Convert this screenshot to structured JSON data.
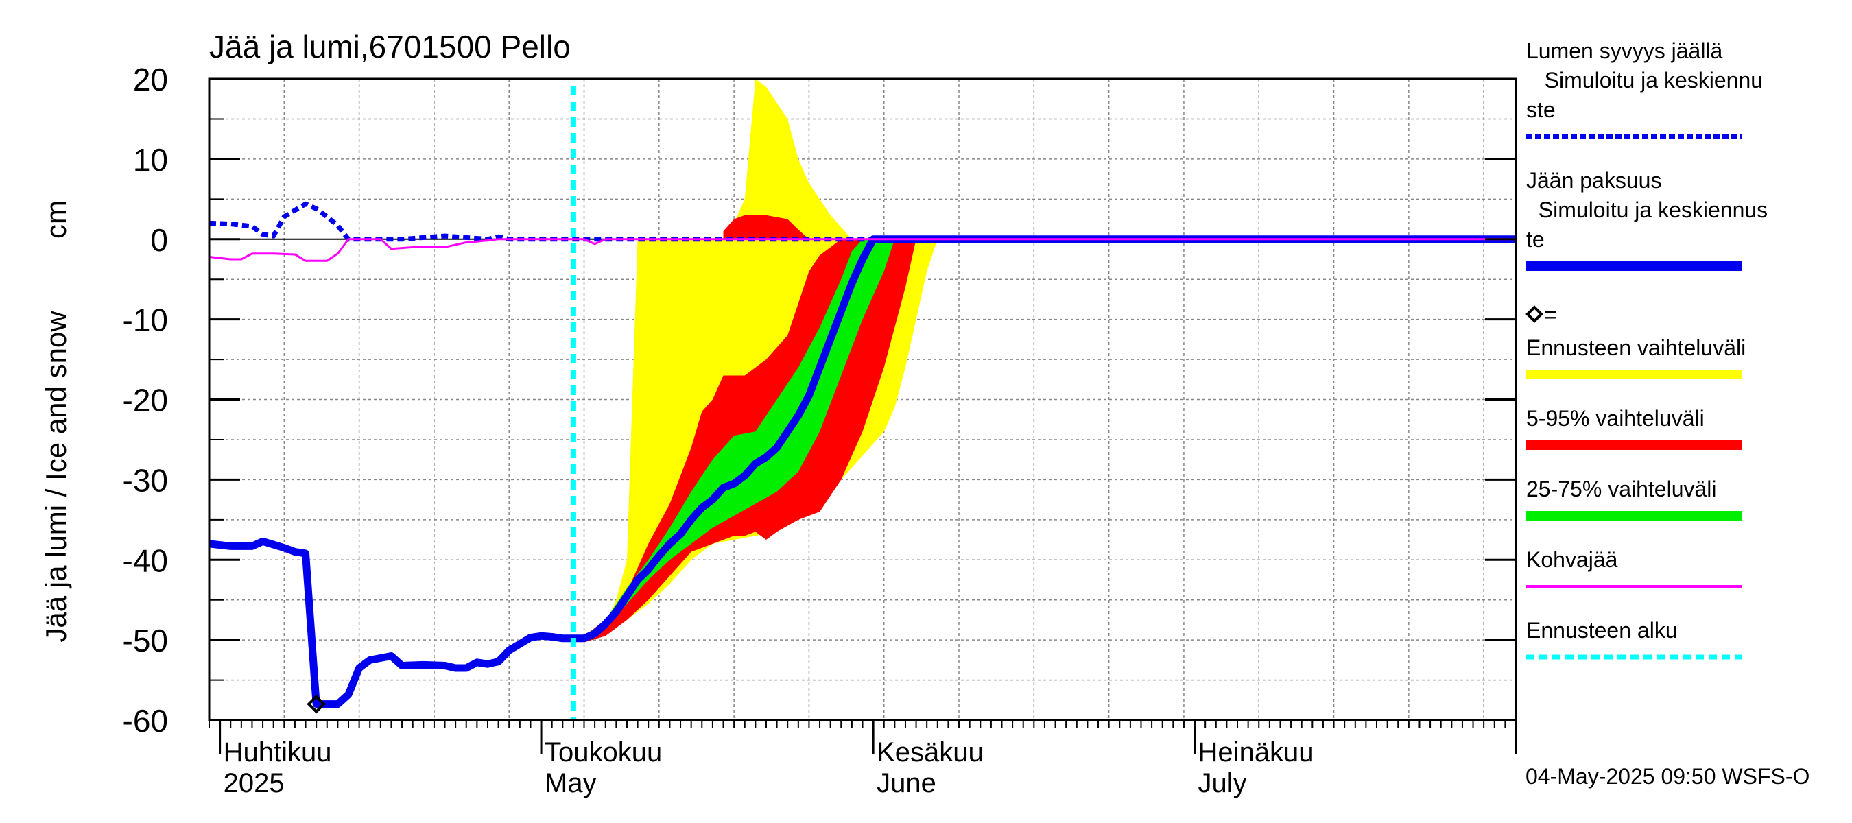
{
  "chart_data": {
    "type": "area",
    "title": "Jää ja lumi,6701500 Pello",
    "ylabel": "Jää ja lumi / Ice and snow",
    "yunit": "cm",
    "ylim": [
      -60,
      20
    ],
    "yticks": [
      20,
      10,
      0,
      -10,
      -20,
      -30,
      -40,
      -50,
      -60
    ],
    "xlim": [
      "2025-03-31",
      "2025-07-31"
    ],
    "grid": true,
    "legend_position": "right",
    "month_labels": [
      {
        "date": "2025-04-01",
        "fi": "Huhtikuu",
        "en": "2025"
      },
      {
        "date": "2025-05-01",
        "fi": "Toukokuu",
        "en": "May"
      },
      {
        "date": "2025-06-01",
        "fi": "Kesäkuu",
        "en": "June"
      },
      {
        "date": "2025-07-01",
        "fi": "Heinäkuu",
        "en": "July"
      }
    ],
    "forecast_start": "2025-05-04",
    "marker": {
      "date": "2025-04-10",
      "value": -58
    },
    "series": [
      {
        "name": "Lumen syvyys jäällä Simuloitu ja keskiennuste",
        "style": "dashed",
        "color": "#0000ee",
        "points": [
          [
            "2025-03-31",
            2.0
          ],
          [
            "2025-04-02",
            1.9
          ],
          [
            "2025-04-04",
            1.6
          ],
          [
            "2025-04-05",
            0.6
          ],
          [
            "2025-04-06",
            0.4
          ],
          [
            "2025-04-07",
            2.8
          ],
          [
            "2025-04-08",
            3.6
          ],
          [
            "2025-04-09",
            4.4
          ],
          [
            "2025-04-10",
            3.8
          ],
          [
            "2025-04-11",
            2.8
          ],
          [
            "2025-04-12",
            1.7
          ],
          [
            "2025-04-13",
            0.0
          ],
          [
            "2025-04-16",
            0.0
          ],
          [
            "2025-04-18",
            0.0
          ],
          [
            "2025-04-20",
            0.2
          ],
          [
            "2025-04-22",
            0.4
          ],
          [
            "2025-04-24",
            0.2
          ],
          [
            "2025-04-26",
            0.0
          ],
          [
            "2025-04-27",
            0.3
          ],
          [
            "2025-04-28",
            0.0
          ],
          [
            "2025-05-31",
            0.0
          ],
          [
            "2025-07-31",
            0.0
          ]
        ]
      },
      {
        "name": "Jään paksuus Simuloitu ja keskiennuste",
        "style": "solid",
        "color": "#0000ee",
        "points": [
          [
            "2025-03-31",
            -38
          ],
          [
            "2025-04-02",
            -38.3
          ],
          [
            "2025-04-04",
            -38.3
          ],
          [
            "2025-04-05",
            -37.7
          ],
          [
            "2025-04-07",
            -38.5
          ],
          [
            "2025-04-08",
            -39
          ],
          [
            "2025-04-09",
            -39.2
          ],
          [
            "2025-04-10",
            -58
          ],
          [
            "2025-04-12",
            -58
          ],
          [
            "2025-04-13",
            -56.8
          ],
          [
            "2025-04-14",
            -53.5
          ],
          [
            "2025-04-15",
            -52.5
          ],
          [
            "2025-04-17",
            -52
          ],
          [
            "2025-04-18",
            -53.2
          ],
          [
            "2025-04-20",
            -53.1
          ],
          [
            "2025-04-22",
            -53.2
          ],
          [
            "2025-04-23",
            -53.5
          ],
          [
            "2025-04-24",
            -53.5
          ],
          [
            "2025-04-25",
            -52.8
          ],
          [
            "2025-04-26",
            -53
          ],
          [
            "2025-04-27",
            -52.7
          ],
          [
            "2025-04-28",
            -51.3
          ],
          [
            "2025-04-29",
            -50.5
          ],
          [
            "2025-04-30",
            -49.7
          ],
          [
            "2025-05-01",
            -49.5
          ],
          [
            "2025-05-02",
            -49.6
          ],
          [
            "2025-05-03",
            -49.8
          ],
          [
            "2025-05-05",
            -49.8
          ],
          [
            "2025-05-06",
            -49.2
          ],
          [
            "2025-05-07",
            -48.0
          ],
          [
            "2025-05-08",
            -46.5
          ],
          [
            "2025-05-09",
            -44.5
          ],
          [
            "2025-05-10",
            -42.5
          ],
          [
            "2025-05-11",
            -41.2
          ],
          [
            "2025-05-12",
            -39.5
          ],
          [
            "2025-05-13",
            -38
          ],
          [
            "2025-05-14",
            -36.8
          ],
          [
            "2025-05-15",
            -35
          ],
          [
            "2025-05-16",
            -33.5
          ],
          [
            "2025-05-17",
            -32.5
          ],
          [
            "2025-05-18",
            -31
          ],
          [
            "2025-05-19",
            -30.5
          ],
          [
            "2025-05-20",
            -29.5
          ],
          [
            "2025-05-21",
            -28
          ],
          [
            "2025-05-22",
            -27.2
          ],
          [
            "2025-05-23",
            -26
          ],
          [
            "2025-05-24",
            -24
          ],
          [
            "2025-05-25",
            -22
          ],
          [
            "2025-05-26",
            -19.5
          ],
          [
            "2025-05-27",
            -16
          ],
          [
            "2025-05-28",
            -12.5
          ],
          [
            "2025-05-29",
            -9
          ],
          [
            "2025-05-30",
            -5.5
          ],
          [
            "2025-05-31",
            -2.5
          ],
          [
            "2025-06-01",
            0
          ],
          [
            "2025-07-31",
            0
          ]
        ]
      },
      {
        "name": "Kohvajää",
        "style": "solid",
        "color": "#ff00ff",
        "points": [
          [
            "2025-03-31",
            -2.2
          ],
          [
            "2025-04-02",
            -2.5
          ],
          [
            "2025-04-03",
            -2.5
          ],
          [
            "2025-04-04",
            -1.8
          ],
          [
            "2025-04-06",
            -1.8
          ],
          [
            "2025-04-08",
            -1.9
          ],
          [
            "2025-04-09",
            -2.7
          ],
          [
            "2025-04-11",
            -2.7
          ],
          [
            "2025-04-12",
            -1.8
          ],
          [
            "2025-04-13",
            0
          ],
          [
            "2025-04-16",
            0
          ],
          [
            "2025-04-17",
            -1.2
          ],
          [
            "2025-04-19",
            -1.0
          ],
          [
            "2025-04-22",
            -1.0
          ],
          [
            "2025-04-24",
            -0.4
          ],
          [
            "2025-04-25",
            -0.3
          ],
          [
            "2025-04-27",
            0
          ],
          [
            "2025-05-05",
            0
          ],
          [
            "2025-05-06",
            -0.6
          ],
          [
            "2025-05-07",
            0
          ],
          [
            "2025-07-31",
            0
          ]
        ]
      }
    ],
    "bands": [
      {
        "name": "Ennusteen vaihteluväli",
        "color": "#ffff00",
        "lower": [
          [
            "2025-05-05",
            -50.3
          ],
          [
            "2025-05-07",
            -49
          ],
          [
            "2025-05-09",
            -47.5
          ],
          [
            "2025-05-11",
            -45.5
          ],
          [
            "2025-05-13",
            -43
          ],
          [
            "2025-05-15",
            -40
          ],
          [
            "2025-05-17",
            -38
          ],
          [
            "2025-05-19",
            -37.5
          ],
          [
            "2025-05-21",
            -37
          ],
          [
            "2025-05-23",
            -36.5
          ],
          [
            "2025-05-25",
            -35
          ],
          [
            "2025-05-27",
            -33
          ],
          [
            "2025-05-29",
            -30
          ],
          [
            "2025-05-31",
            -27
          ],
          [
            "2025-06-02",
            -24
          ],
          [
            "2025-06-03",
            -21
          ],
          [
            "2025-06-04",
            -16
          ],
          [
            "2025-06-05",
            -10
          ],
          [
            "2025-06-06",
            -4
          ],
          [
            "2025-06-07",
            0
          ]
        ],
        "upper": [
          [
            "2025-05-05",
            -49.5
          ],
          [
            "2025-05-07",
            -48
          ],
          [
            "2025-05-08",
            -45
          ],
          [
            "2025-05-09",
            -40
          ],
          [
            "2025-05-10",
            0
          ],
          [
            "2025-05-18",
            0
          ],
          [
            "2025-05-19",
            2
          ],
          [
            "2025-05-20",
            5
          ],
          [
            "2025-05-21",
            20
          ],
          [
            "2025-05-22",
            19
          ],
          [
            "2025-05-23",
            17
          ],
          [
            "2025-05-24",
            15
          ],
          [
            "2025-05-25",
            10
          ],
          [
            "2025-05-26",
            7
          ],
          [
            "2025-05-27",
            5
          ],
          [
            "2025-05-28",
            3
          ],
          [
            "2025-05-29",
            1.5
          ],
          [
            "2025-05-30",
            0
          ]
        ]
      },
      {
        "name": "5-95% vaihteluväli",
        "color": "#ff0000",
        "lower": [
          [
            "2025-05-05",
            -50.3
          ],
          [
            "2025-05-07",
            -49.5
          ],
          [
            "2025-05-09",
            -47.5
          ],
          [
            "2025-05-11",
            -45
          ],
          [
            "2025-05-13",
            -42
          ],
          [
            "2025-05-15",
            -39
          ],
          [
            "2025-05-17",
            -38
          ],
          [
            "2025-05-19",
            -37
          ],
          [
            "2025-05-20",
            -37
          ],
          [
            "2025-05-21",
            -36.5
          ],
          [
            "2025-05-22",
            -37.5
          ],
          [
            "2025-05-23",
            -36.5
          ],
          [
            "2025-05-25",
            -35
          ],
          [
            "2025-05-27",
            -34
          ],
          [
            "2025-05-29",
            -30
          ],
          [
            "2025-05-31",
            -24
          ],
          [
            "2025-06-02",
            -16
          ],
          [
            "2025-06-03",
            -11
          ],
          [
            "2025-06-04",
            -6
          ],
          [
            "2025-06-05",
            0
          ]
        ],
        "upper": [
          [
            "2025-05-05",
            -49.5
          ],
          [
            "2025-05-07",
            -47.5
          ],
          [
            "2025-05-09",
            -44
          ],
          [
            "2025-05-11",
            -38
          ],
          [
            "2025-05-13",
            -33
          ],
          [
            "2025-05-15",
            -26
          ],
          [
            "2025-05-16",
            -21.5
          ],
          [
            "2025-05-17",
            -20
          ],
          [
            "2025-05-18",
            -17
          ],
          [
            "2025-05-20",
            -17
          ],
          [
            "2025-05-22",
            -15
          ],
          [
            "2025-05-24",
            -12
          ],
          [
            "2025-05-25",
            -8
          ],
          [
            "2025-05-26",
            -4
          ],
          [
            "2025-05-27",
            -2
          ],
          [
            "2025-05-28",
            -1
          ],
          [
            "2025-05-29",
            0
          ]
        ]
      },
      {
        "name": "5-95% yläosa",
        "color": "#ff0000",
        "lower": [
          [
            "2025-05-18",
            0
          ],
          [
            "2025-05-26",
            0
          ]
        ],
        "upper": [
          [
            "2025-05-18",
            1
          ],
          [
            "2025-05-19",
            2.5
          ],
          [
            "2025-05-20",
            3
          ],
          [
            "2025-05-22",
            3
          ],
          [
            "2025-05-24",
            2.5
          ],
          [
            "2025-05-25",
            1.2
          ],
          [
            "2025-05-26",
            0
          ]
        ]
      },
      {
        "name": "25-75% vaihteluväli",
        "color": "#00ee00",
        "lower": [
          [
            "2025-05-05",
            -50
          ],
          [
            "2025-05-07",
            -48.5
          ],
          [
            "2025-05-09",
            -45.5
          ],
          [
            "2025-05-11",
            -42.5
          ],
          [
            "2025-05-13",
            -40
          ],
          [
            "2025-05-15",
            -38
          ],
          [
            "2025-05-17",
            -36
          ],
          [
            "2025-05-19",
            -34.5
          ],
          [
            "2025-05-21",
            -33
          ],
          [
            "2025-05-23",
            -31.5
          ],
          [
            "2025-05-25",
            -29
          ],
          [
            "2025-05-27",
            -24
          ],
          [
            "2025-05-29",
            -17
          ],
          [
            "2025-05-31",
            -10
          ],
          [
            "2025-06-02",
            -4
          ],
          [
            "2025-06-03",
            0
          ]
        ],
        "upper": [
          [
            "2025-05-05",
            -49.6
          ],
          [
            "2025-05-07",
            -47.5
          ],
          [
            "2025-05-09",
            -43.5
          ],
          [
            "2025-05-11",
            -40
          ],
          [
            "2025-05-13",
            -36
          ],
          [
            "2025-05-15",
            -31.5
          ],
          [
            "2025-05-17",
            -27.5
          ],
          [
            "2025-05-19",
            -24.5
          ],
          [
            "2025-05-21",
            -24
          ],
          [
            "2025-05-23",
            -20
          ],
          [
            "2025-05-25",
            -16
          ],
          [
            "2025-05-27",
            -11
          ],
          [
            "2025-05-29",
            -5
          ],
          [
            "2025-05-30",
            -1.5
          ],
          [
            "2025-05-31",
            0
          ]
        ]
      }
    ]
  },
  "legend": [
    {
      "lines": [
        "Lumen syvyys jäällä",
        "   Simuloitu ja keskiennu",
        "ste"
      ],
      "color": "#0000ee",
      "style": "dashed"
    },
    {
      "lines": [
        "Jään paksuus",
        "  Simuloitu ja keskiennus",
        "te"
      ],
      "color": "#0000ee",
      "style": "thick"
    },
    {
      "lines": [
        "="
      ],
      "color": "#000000",
      "style": "diamond"
    },
    {
      "lines": [
        "Ennusteen vaihteluväli"
      ],
      "color": "#ffff00",
      "style": "band"
    },
    {
      "lines": [
        "5-95% vaihteluväli"
      ],
      "color": "#ff0000",
      "style": "band"
    },
    {
      "lines": [
        "25-75% vaihteluväli"
      ],
      "color": "#00ee00",
      "style": "band"
    },
    {
      "lines": [
        "Kohvajää"
      ],
      "color": "#ff00ff",
      "style": "line"
    },
    {
      "lines": [
        "Ennusteen alku"
      ],
      "color": "#00ffff",
      "style": "dotted"
    }
  ],
  "footer": "04-May-2025 09:50 WSFS-O"
}
